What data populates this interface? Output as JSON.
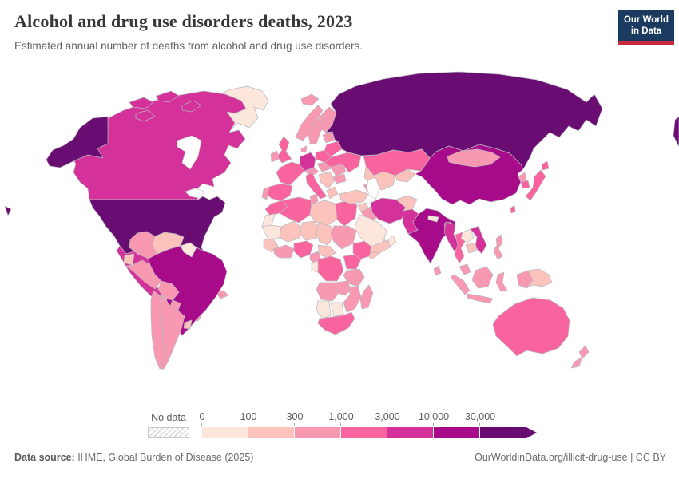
{
  "header": {
    "title": "Alcohol and drug use disorders deaths, 2023",
    "subtitle": "Estimated annual number of deaths from alcohol and drug use disorders.",
    "logo_line1": "Our World",
    "logo_line2": "in Data"
  },
  "legend": {
    "no_data_label": "No data",
    "bins": [
      {
        "label": "0",
        "color": "#fde6db"
      },
      {
        "label": "100",
        "color": "#fbc3bb"
      },
      {
        "label": "300",
        "color": "#f899b1"
      },
      {
        "label": "1,000",
        "color": "#f9639e"
      },
      {
        "label": "3,000",
        "color": "#d4319a"
      },
      {
        "label": "10,000",
        "color": "#a80b8a"
      },
      {
        "label": "30,000",
        "color": "#6a0d72"
      }
    ]
  },
  "footer": {
    "source_label": "Data source:",
    "source_text": " IHME, Global Burden of Disease (2025)",
    "link_text": "OurWorldinData.org/illicit-drug-use | CC BY"
  },
  "chart_data": {
    "type": "heatmap",
    "title": "Alcohol and drug use disorders deaths, 2023",
    "subtitle": "Estimated annual number of deaths from alcohol and drug use disorders.",
    "unit": "deaths per year",
    "scale": "log-binned",
    "legend_bins": [
      "0",
      "100",
      "300",
      "1,000",
      "3,000",
      "10,000",
      "30,000"
    ],
    "bin_colors": [
      "#fde6db",
      "#fbc3bb",
      "#f899b1",
      "#f9639e",
      "#d4319a",
      "#a80b8a",
      "#6a0d72"
    ],
    "no_data_label": "No data",
    "regions_by_bin": {
      "30,000+": [
        "United States",
        "Russia"
      ],
      "10,000-30,000": [
        "China",
        "India",
        "Brazil"
      ],
      "3,000-10,000": [
        "Canada",
        "Mexico",
        "Germany",
        "Iran",
        "Pakistan",
        "Bangladesh",
        "Myanmar",
        "Vietnam"
      ],
      "1,000-3,000": [
        "United Kingdom",
        "France",
        "Spain",
        "Italy",
        "Poland",
        "Ukraine",
        "Kazakhstan",
        "Japan",
        "South Korea",
        "Thailand",
        "Australia",
        "South Africa",
        "Egypt",
        "Algeria",
        "Morocco",
        "Nigeria",
        "Ethiopia",
        "Kenya",
        "DR Congo"
      ],
      "300-1,000": [
        "Colombia",
        "Peru",
        "Argentina",
        "Chile",
        "Scandinavia",
        "Mongolia",
        "Indonesia",
        "Philippines",
        "Tanzania",
        "Angola",
        "Madagascar",
        "New Zealand"
      ],
      "100-300": [
        "Venezuela",
        "Turkey",
        "Libya",
        "Mali",
        "Niger",
        "Chad",
        "Somalia",
        "Afghanistan",
        "Cambodia",
        "Papua New Guinea"
      ],
      "0-100": [
        "Greenland",
        "Saudi Arabia",
        "Oman",
        "Mauritania",
        "Namibia",
        "Botswana",
        "Laos",
        "Nepal",
        "Guyana"
      ]
    }
  },
  "map": {
    "palette": {
      "b1": "#fde6db",
      "b2": "#fbc3bb",
      "b3": "#f899b1",
      "b4": "#f9639e",
      "b5": "#d4319a",
      "b6": "#a80b8a",
      "b7": "#6a0d72"
    },
    "countries": {
      "greenland": "b1",
      "canada": "b5",
      "arctic-island-1": "b5",
      "arctic-island-2": "b5",
      "arctic-island-3": "b5",
      "arctic-island-4": "b5",
      "alaska": "b7",
      "usa": "b7",
      "hawaii": "b7",
      "mexico": "b5",
      "guatemala": "b3",
      "honduras-nicaragua": "b3",
      "costa-rica-panama": "b3",
      "cuba": "b3",
      "hispaniola": "b3",
      "colombia": "b3",
      "venezuela": "b2",
      "guyana": "b1",
      "ecuador": "b2",
      "peru": "b3",
      "brazil": "b6",
      "bolivia": "b3",
      "paraguay": "b3",
      "chile": "b3",
      "argentina": "b3",
      "uruguay": "b2",
      "iceland": "b3",
      "norway": "b3",
      "sweden": "b3",
      "finland": "b3",
      "denmark": "b3",
      "uk": "b4",
      "ireland": "b3",
      "germany": "b5",
      "france": "b4",
      "spain": "b4",
      "portugal": "b3",
      "italy": "b4",
      "alpine": "b3",
      "poland": "b4",
      "czech-hungary": "b3",
      "balkans": "b2",
      "greece": "b2",
      "romania": "b3",
      "bulgaria": "b3",
      "ukraine": "b4",
      "belarus": "b4",
      "baltics": "b3",
      "russia": "b7",
      "chukotka-sliver": "b7",
      "turkey": "b2",
      "caucasus": "b3",
      "syria": "b2",
      "iraq": "b3",
      "saudi-arabia": "b1",
      "yemen": "b2",
      "oman": "b1",
      "iran": "b5",
      "afghanistan": "b2",
      "pakistan": "b5",
      "kazakhstan": "b4",
      "uzbek-turkmen": "b2",
      "kyrgyz-tajik": "b2",
      "india": "b6",
      "nepal": "b1",
      "bangladesh": "b5",
      "sri-lanka": "b3",
      "china": "b6",
      "mongolia": "b3",
      "north-korea": "b3",
      "south-korea": "b4",
      "japan": "b4",
      "hokkaido": "b4",
      "taiwan": "b4",
      "myanmar": "b5",
      "thailand": "b4",
      "laos": "b1",
      "vietnam": "b5",
      "cambodia": "b2",
      "malaysia": "b3",
      "sumatra": "b3",
      "java": "b3",
      "borneo": "b3",
      "sulawesi": "b3",
      "west-papua": "b3",
      "papua-new-guinea": "b2",
      "philippines": "b3",
      "australia": "b4",
      "nz-north": "b3",
      "nz-south": "b3",
      "morocco": "b4",
      "w-sahara": "b1",
      "algeria": "b4",
      "tunisia": "b3",
      "libya": "b2",
      "egypt": "b4",
      "mauritania": "b1",
      "mali": "b2",
      "niger": "b2",
      "chad": "b2",
      "sudan": "b3",
      "senegal-guinea": "b2",
      "ivory-ghana": "b3",
      "nigeria": "b4",
      "cameroon": "b3",
      "car": "b2",
      "ethiopia": "b4",
      "somalia": "b2",
      "drc": "b4",
      "congo-gabon": "b1",
      "kenya-uganda": "b4",
      "tanzania": "b3",
      "angola": "b3",
      "zambia": "b3",
      "mozambique-zimbabwe": "b3",
      "namibia": "b1",
      "botswana": "b1",
      "south-africa": "b4",
      "madagascar": "b3"
    }
  }
}
